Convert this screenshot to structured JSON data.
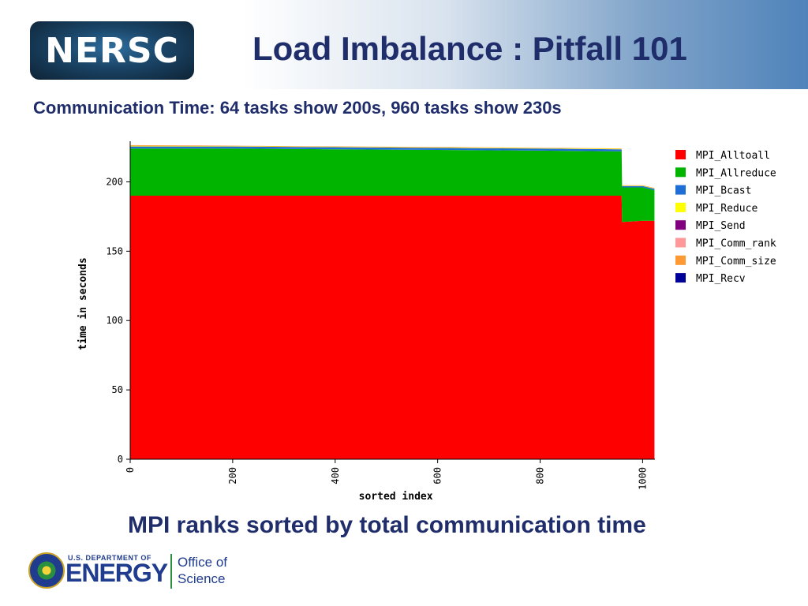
{
  "header": {
    "logo_text": "NERSC",
    "title": "Load Imbalance : Pitfall 101"
  },
  "subtitle": "Communication Time: 64 tasks show 200s, 960 tasks show 230s",
  "caption": "MPI ranks sorted by total communication time",
  "footer": {
    "dept": "U.S. DEPARTMENT OF",
    "energy": "ENERGY",
    "office_line1": "Office of",
    "office_line2": "Science"
  },
  "colors": {
    "title_text": "#1f2d6b",
    "MPI_Alltoall": "#ff0000",
    "MPI_Allreduce": "#00b400",
    "MPI_Bcast": "#1f6ed6",
    "MPI_Reduce": "#ffff00",
    "MPI_Send": "#800080",
    "MPI_Comm_rank": "#ff9999",
    "MPI_Comm_size": "#ff9933",
    "MPI_Recv": "#000099"
  },
  "chart_data": {
    "type": "area",
    "xlabel": "sorted index",
    "ylabel": "time in seconds",
    "xlim": [
      0,
      1024
    ],
    "ylim": [
      0,
      227
    ],
    "x_ticks": [
      0,
      200,
      400,
      600,
      800,
      1000
    ],
    "y_ticks": [
      0,
      50,
      100,
      150,
      200
    ],
    "legend_position": "right",
    "legend": [
      "MPI_Alltoall",
      "MPI_Allreduce",
      "MPI_Bcast",
      "MPI_Reduce",
      "MPI_Send",
      "MPI_Comm_rank",
      "MPI_Comm_size",
      "MPI_Recv"
    ],
    "x": [
      0,
      200,
      400,
      600,
      800,
      959,
      960,
      1000,
      1023
    ],
    "series": [
      {
        "name": "MPI_Alltoall",
        "values": [
          190,
          190,
          190,
          190,
          190,
          190,
          171,
          172,
          172
        ]
      },
      {
        "name": "MPI_Allreduce",
        "values": [
          34,
          34,
          33.5,
          33,
          32.5,
          32,
          25,
          24,
          22
        ]
      },
      {
        "name": "MPI_Bcast",
        "values": [
          1.5,
          1.5,
          1.5,
          1.5,
          1.5,
          1.5,
          1,
          1,
          1
        ]
      },
      {
        "name": "MPI_Reduce",
        "values": [
          0.5,
          0.3,
          0.3,
          0.3,
          0.3,
          0.3,
          0.3,
          0.3,
          0.3
        ]
      },
      {
        "name": "MPI_Send",
        "values": [
          0,
          0,
          0,
          0,
          0,
          0,
          0,
          0,
          0
        ]
      },
      {
        "name": "MPI_Comm_rank",
        "values": [
          0,
          0,
          0,
          0,
          0,
          0,
          0,
          0,
          0
        ]
      },
      {
        "name": "MPI_Comm_size",
        "values": [
          0.5,
          0.3,
          0.3,
          0.3,
          0.3,
          0.3,
          0.3,
          0.3,
          0.3
        ]
      },
      {
        "name": "MPI_Recv",
        "values": [
          0,
          0,
          0,
          0,
          0,
          0,
          0,
          0,
          0
        ]
      }
    ]
  }
}
